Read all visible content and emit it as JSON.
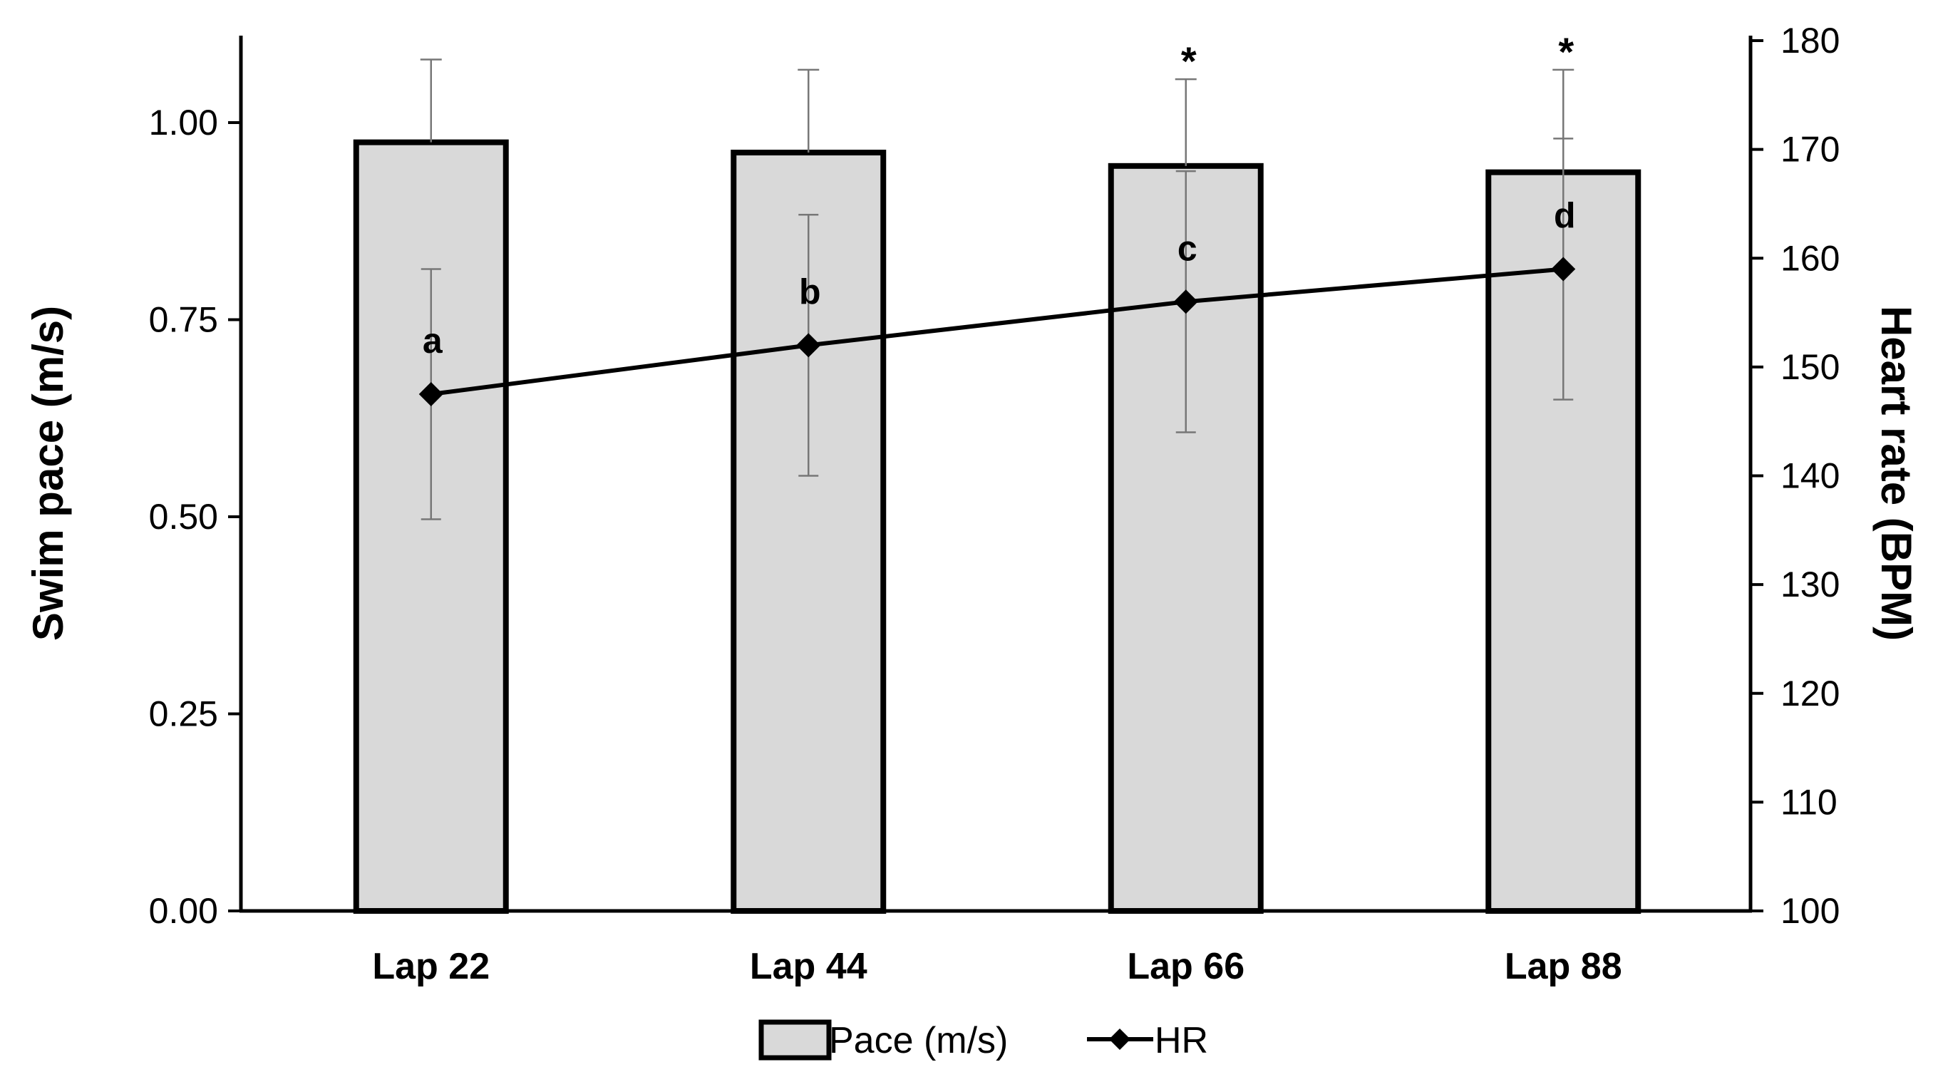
{
  "chart_data": {
    "type": "bar",
    "categories": [
      "Lap 22",
      "Lap 44",
      "Lap 66",
      "Lap 88"
    ],
    "series": [
      {
        "name": "Pace (m/s)",
        "kind": "bar",
        "axis": "left",
        "values": [
          0.975,
          0.962,
          0.945,
          0.937
        ],
        "error": [
          0.105,
          0.105,
          0.11,
          0.13
        ],
        "fill": "#d9d9d9",
        "stroke": "#000000"
      },
      {
        "name": "HR",
        "kind": "line",
        "axis": "right",
        "marker": "diamond",
        "values": [
          147.5,
          152.0,
          156.0,
          159.0
        ],
        "error": [
          11.5,
          12.0,
          12.0,
          12.0
        ],
        "color": "#000000"
      }
    ],
    "annotations": [
      "a",
      "b",
      "c",
      "d"
    ],
    "significance": [
      "",
      "",
      "*",
      "*"
    ],
    "ylabel": "Swim pace (m/s)",
    "y2label": "Heart rate (BPM)",
    "ylim": [
      0,
      1.1
    ],
    "yticks": [
      0.0,
      0.25,
      0.5,
      0.75,
      1.0
    ],
    "yticklabels": [
      "0.00",
      "0.25",
      "0.50",
      "0.75",
      "1.00"
    ],
    "y2lim": [
      100,
      181
    ],
    "y2ticks": [
      100,
      110,
      120,
      130,
      140,
      150,
      160,
      170,
      180
    ],
    "y2ticklabels": [
      "100",
      "110",
      "120",
      "130",
      "140",
      "150",
      "160",
      "170",
      "180"
    ],
    "legend": {
      "position": "bottom-center",
      "entries": [
        "Pace (m/s)",
        "HR"
      ]
    },
    "grid": false
  }
}
